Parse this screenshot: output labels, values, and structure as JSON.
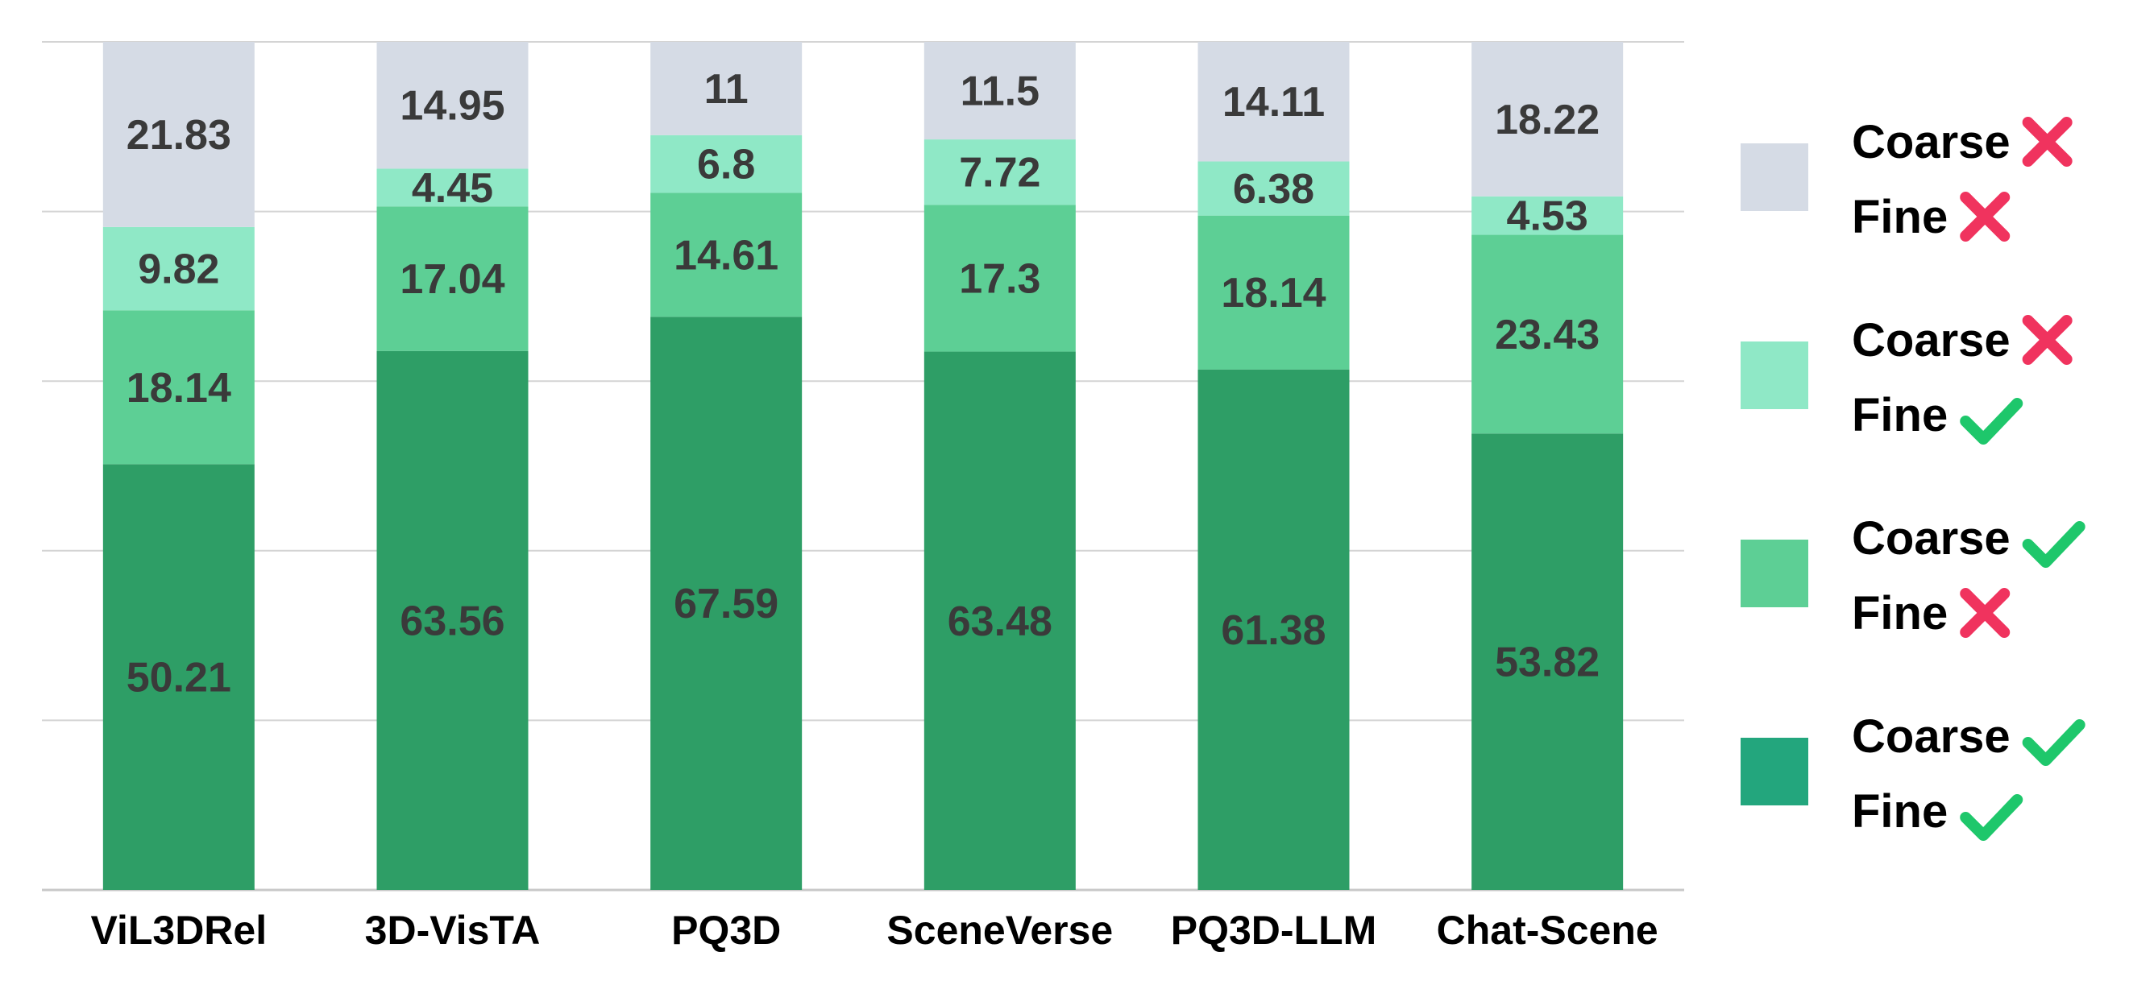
{
  "chart_data": {
    "type": "bar",
    "stacked": true,
    "categories": [
      "ViL3DRel",
      "3D-VisTA",
      "PQ3D",
      "SceneVerse",
      "PQ3D-LLM",
      "Chat-Scene"
    ],
    "ylim": [
      0,
      100
    ],
    "grid": true,
    "legend_position": "right",
    "series": [
      {
        "key": "coarse_correct_fine_correct",
        "legend": [
          {
            "text": "Coarse",
            "mark": "check"
          },
          {
            "text": "Fine",
            "mark": "check"
          }
        ],
        "color": "#2e9e66",
        "legend_color": "#23a67d",
        "values": [
          50.21,
          63.56,
          67.59,
          63.48,
          61.38,
          53.82
        ]
      },
      {
        "key": "coarse_correct_fine_wrong",
        "legend": [
          {
            "text": "Coarse",
            "mark": "check"
          },
          {
            "text": "Fine",
            "mark": "cross"
          }
        ],
        "color": "#5dcf95",
        "legend_color": "#5dcf95",
        "values": [
          18.14,
          17.04,
          14.61,
          17.3,
          18.14,
          23.43
        ]
      },
      {
        "key": "coarse_wrong_fine_correct",
        "legend": [
          {
            "text": "Coarse",
            "mark": "cross"
          },
          {
            "text": "Fine",
            "mark": "check"
          }
        ],
        "color": "#8fe8c6",
        "legend_color": "#8fe8c6",
        "values": [
          9.82,
          4.45,
          6.8,
          7.72,
          6.38,
          4.53
        ]
      },
      {
        "key": "coarse_wrong_fine_wrong",
        "legend": [
          {
            "text": "Coarse",
            "mark": "cross"
          },
          {
            "text": "Fine",
            "mark": "cross"
          }
        ],
        "color": "#d5dbe5",
        "legend_color": "#d5dbe5",
        "values": [
          21.83,
          14.95,
          11,
          11.5,
          14.11,
          18.22
        ]
      }
    ],
    "colors": {
      "label_text": "#3a3a3a",
      "tick_text": "#000000",
      "legend_text": "#000000",
      "check": "#1ec76b",
      "cross": "#f0335e",
      "grid": "#d4d4d4",
      "axis": "#c8c8c8"
    }
  }
}
